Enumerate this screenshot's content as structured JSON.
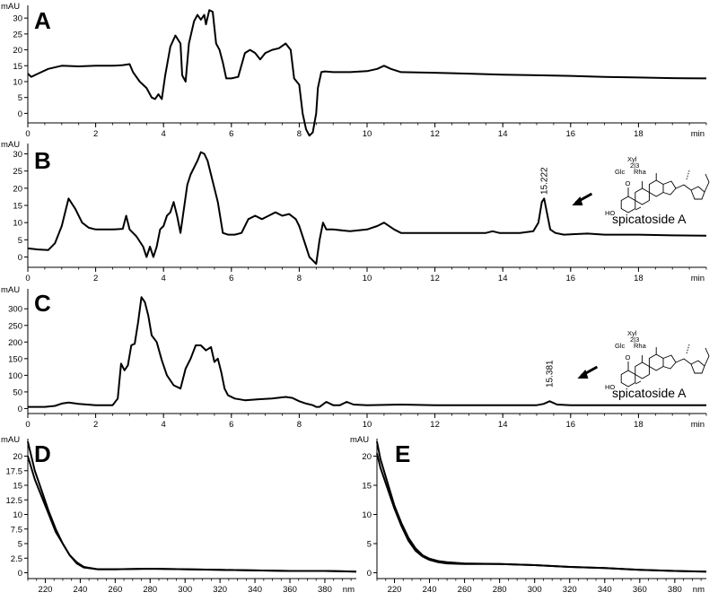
{
  "chart_data": [
    {
      "panel": "A",
      "type": "line",
      "xlabel_unit": "min",
      "ylabel_unit": "mAU",
      "xlim": [
        0,
        20
      ],
      "ylim": [
        -3,
        34
      ],
      "xticks": [
        0,
        2,
        4,
        6,
        8,
        10,
        12,
        14,
        16,
        18
      ],
      "yticks": [
        0,
        5,
        10,
        15,
        20,
        25,
        30
      ],
      "x": [
        0,
        0.1,
        0.3,
        0.6,
        1.0,
        1.5,
        2.0,
        2.5,
        2.8,
        3.0,
        3.1,
        3.3,
        3.5,
        3.65,
        3.75,
        3.85,
        3.95,
        4.05,
        4.2,
        4.35,
        4.5,
        4.55,
        4.65,
        4.75,
        4.9,
        5.0,
        5.1,
        5.2,
        5.25,
        5.35,
        5.45,
        5.55,
        5.65,
        5.75,
        5.85,
        6.0,
        6.2,
        6.4,
        6.55,
        6.7,
        6.85,
        7.0,
        7.2,
        7.4,
        7.6,
        7.75,
        7.85,
        8.0,
        8.1,
        8.2,
        8.3,
        8.4,
        8.5,
        8.55,
        8.65,
        8.75,
        9.0,
        9.5,
        10.0,
        10.3,
        10.5,
        10.7,
        11.0,
        12.0,
        13.0,
        14.0,
        15.0,
        16.0,
        17.0,
        18.0,
        19.0,
        20.0
      ],
      "y": [
        12.5,
        11.5,
        12.5,
        14,
        15,
        14.8,
        15,
        15,
        15.2,
        15.5,
        13,
        10,
        8,
        5,
        4.5,
        6,
        4.5,
        12,
        21,
        24.5,
        22,
        12,
        10,
        22,
        29,
        31,
        29.5,
        31,
        28,
        32.5,
        32,
        22,
        20,
        16,
        11,
        11,
        11.5,
        19,
        20,
        19,
        17,
        19,
        20,
        20.5,
        22,
        20,
        11,
        9,
        0,
        -5,
        -7,
        -6,
        0,
        8,
        13,
        13.2,
        13,
        13,
        13.3,
        14,
        15,
        14,
        13,
        12.8,
        12.5,
        12.2,
        12,
        11.8,
        11.5,
        11.3,
        11.1,
        11
      ]
    },
    {
      "panel": "B",
      "type": "line",
      "xlabel_unit": "min",
      "ylabel_unit": "mAU",
      "xlim": [
        0,
        20
      ],
      "ylim": [
        -3,
        33
      ],
      "xticks": [
        0,
        2,
        4,
        6,
        8,
        10,
        12,
        14,
        16,
        18
      ],
      "yticks": [
        0,
        5,
        10,
        15,
        20,
        25,
        30
      ],
      "annotation": {
        "peak_label": "15.222",
        "compound": "spicatoside A",
        "chem": {
          "top": "Xyl",
          "sub": "2|3",
          "glc": "Glc",
          "rha": "Rha",
          "o": "O",
          "ho": "HO"
        }
      },
      "x": [
        0,
        0.3,
        0.6,
        0.8,
        1.0,
        1.2,
        1.4,
        1.6,
        1.8,
        2.0,
        2.5,
        2.8,
        2.9,
        3.0,
        3.2,
        3.4,
        3.5,
        3.6,
        3.7,
        3.8,
        3.9,
        4.0,
        4.1,
        4.2,
        4.3,
        4.4,
        4.5,
        4.7,
        4.8,
        5.0,
        5.1,
        5.2,
        5.3,
        5.45,
        5.6,
        5.75,
        5.9,
        6.1,
        6.3,
        6.5,
        6.7,
        6.9,
        7.1,
        7.3,
        7.5,
        7.7,
        7.9,
        8.0,
        8.1,
        8.2,
        8.3,
        8.4,
        8.5,
        8.6,
        8.7,
        8.8,
        9.0,
        9.5,
        10.0,
        10.3,
        10.5,
        10.8,
        11.0,
        12.0,
        13.0,
        13.5,
        13.7,
        13.9,
        14.5,
        14.9,
        15.05,
        15.15,
        15.22,
        15.3,
        15.4,
        15.55,
        15.8,
        16.5,
        17.0,
        18.0,
        19.0,
        20.0
      ],
      "y": [
        2.5,
        2.2,
        2.0,
        4,
        9,
        17,
        14,
        10,
        8.5,
        8,
        8,
        8.2,
        12,
        8,
        6,
        3,
        0,
        3,
        0,
        3,
        8,
        9,
        12,
        13,
        16,
        12,
        7,
        21,
        24,
        28,
        30.5,
        30,
        28,
        22,
        16,
        7,
        6.5,
        6.5,
        7,
        11,
        12,
        11,
        12,
        13,
        12,
        12.5,
        11,
        9,
        6,
        3,
        0,
        -1,
        -2,
        5,
        10,
        8,
        8,
        7.5,
        8,
        9,
        10,
        8,
        7,
        7,
        7,
        7,
        7.5,
        7,
        7,
        7.5,
        10,
        16,
        17,
        13,
        8,
        7,
        6.5,
        6.8,
        6.5,
        6.5,
        6.3,
        6.2
      ]
    },
    {
      "panel": "C",
      "type": "line",
      "xlabel_unit": "min",
      "ylabel_unit": "mAU",
      "xlim": [
        0,
        20
      ],
      "ylim": [
        -15,
        360
      ],
      "xticks": [
        0,
        2,
        4,
        6,
        8,
        10,
        12,
        14,
        16,
        18
      ],
      "yticks": [
        0,
        50,
        100,
        150,
        200,
        250,
        300
      ],
      "annotation": {
        "peak_label": "15.381",
        "compound": "spicatoside A",
        "chem": {
          "top": "Xyl",
          "sub": "2|3",
          "glc": "Glc",
          "rha": "Rha",
          "o": "O",
          "ho": "HO"
        }
      },
      "x": [
        0,
        0.5,
        0.8,
        1.0,
        1.2,
        1.5,
        2.0,
        2.5,
        2.65,
        2.75,
        2.85,
        2.95,
        3.05,
        3.15,
        3.25,
        3.35,
        3.45,
        3.55,
        3.65,
        3.8,
        3.95,
        4.1,
        4.3,
        4.5,
        4.65,
        4.8,
        4.95,
        5.1,
        5.25,
        5.4,
        5.5,
        5.6,
        5.7,
        5.8,
        5.9,
        6.1,
        6.4,
        6.8,
        7.2,
        7.6,
        7.8,
        8.0,
        8.2,
        8.4,
        8.5,
        8.6,
        8.8,
        9.0,
        9.2,
        9.4,
        9.6,
        10.0,
        11.0,
        12.0,
        13.0,
        14.0,
        15.0,
        15.2,
        15.381,
        15.6,
        16.0,
        17.0,
        18.0,
        19.0,
        20.0
      ],
      "y": [
        5,
        5,
        8,
        15,
        18,
        14,
        10,
        10,
        30,
        135,
        115,
        130,
        190,
        195,
        260,
        335,
        320,
        280,
        220,
        200,
        145,
        100,
        70,
        60,
        120,
        150,
        190,
        190,
        175,
        185,
        140,
        150,
        110,
        60,
        40,
        30,
        25,
        28,
        30,
        35,
        32,
        22,
        15,
        10,
        5,
        5,
        20,
        10,
        10,
        20,
        12,
        10,
        12,
        10,
        10,
        10,
        10,
        14,
        22,
        12,
        10,
        10,
        10,
        10,
        10
      ]
    },
    {
      "panel": "D",
      "type": "line",
      "xlabel_unit": "nm",
      "ylabel_unit": "mAU",
      "xlim": [
        210,
        398
      ],
      "ylim": [
        -1,
        23
      ],
      "xticks": [
        220,
        240,
        260,
        280,
        300,
        320,
        340,
        360,
        380
      ],
      "yticks": [
        "0",
        "2.5",
        "5",
        "7.5",
        "10",
        "12.5",
        "15",
        "17.5",
        "20"
      ],
      "series": [
        {
          "x": [
            210,
            214,
            218,
            222,
            226,
            230,
            234,
            238,
            242,
            250,
            260,
            280,
            300,
            320,
            340,
            360,
            380,
            398
          ],
          "y": [
            20,
            16,
            13,
            10,
            7,
            5,
            3,
            1.8,
            1,
            0.6,
            0.6,
            0.7,
            0.6,
            0.5,
            0.4,
            0.3,
            0.3,
            0.2
          ]
        },
        {
          "x": [
            210,
            214,
            218,
            222,
            226,
            230,
            234,
            238,
            242,
            250,
            260,
            280,
            300,
            320,
            340,
            360,
            380,
            398
          ],
          "y": [
            22.5,
            17.5,
            14,
            10.5,
            7.5,
            5,
            3,
            1.6,
            0.9,
            0.6,
            0.6,
            0.7,
            0.6,
            0.5,
            0.4,
            0.3,
            0.3,
            0.2
          ]
        }
      ]
    },
    {
      "panel": "E",
      "type": "line",
      "xlabel_unit": "nm",
      "ylabel_unit": "mAU",
      "xlim": [
        210,
        398
      ],
      "ylim": [
        -1,
        23
      ],
      "xticks": [
        220,
        240,
        260,
        280,
        300,
        320,
        340,
        360,
        380
      ],
      "yticks": [
        0,
        5,
        10,
        15,
        20
      ],
      "series": [
        {
          "x": [
            210,
            212,
            216,
            220,
            224,
            228,
            232,
            236,
            240,
            245,
            250,
            260,
            280,
            300,
            320,
            340,
            360,
            380,
            398
          ],
          "y": [
            20.5,
            18,
            14.5,
            11,
            8,
            5.5,
            3.8,
            2.8,
            2.2,
            1.8,
            1.6,
            1.5,
            1.5,
            1.3,
            1.0,
            0.8,
            0.5,
            0.3,
            0.2
          ]
        },
        {
          "x": [
            210,
            212,
            216,
            220,
            224,
            228,
            232,
            236,
            240,
            245,
            250,
            260,
            280,
            300,
            320,
            340,
            360,
            380,
            398
          ],
          "y": [
            22.5,
            19.5,
            15.5,
            11.5,
            8.5,
            6,
            4.2,
            3,
            2.4,
            2,
            1.8,
            1.6,
            1.5,
            1.3,
            1.0,
            0.8,
            0.5,
            0.3,
            0.2
          ]
        }
      ]
    }
  ]
}
